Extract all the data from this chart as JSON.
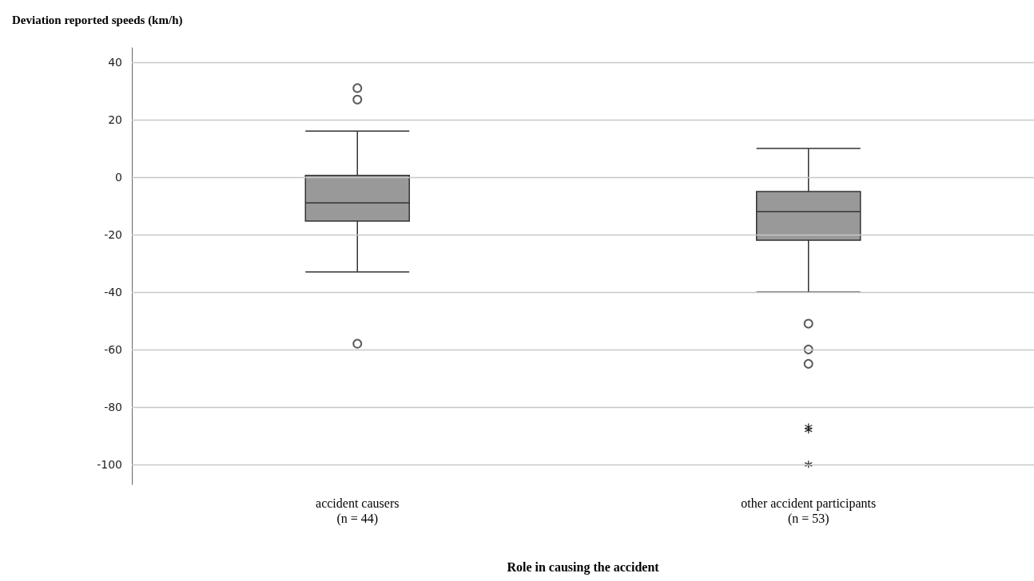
{
  "chart_data": {
    "type": "box",
    "ylabel": "Deviation reported speeds (km/h)",
    "xlabel": "Role in causing the accident",
    "categories": [
      "accident causers\n(n = 44)",
      "other accident participants\n(n = 53)"
    ],
    "boxes": [
      {
        "low": -33,
        "q1": -15.3,
        "median": -9,
        "q3": 0.6,
        "high": 16,
        "outliers": [
          31,
          27,
          -58
        ]
      },
      {
        "low": -40,
        "q1": -22,
        "median": -12,
        "q3": -5,
        "high": 10,
        "outliers": [
          -51,
          -60,
          -65
        ]
      }
    ],
    "series": [
      {
        "type": "scatter",
        "marker": "cross",
        "color": "#000000",
        "x": [
          "other accident participants\n(n = 53)",
          "other accident participants\n(n = 53)",
          "other accident participants\n(n = 53)"
        ],
        "values": [
          -87,
          -88,
          -100
        ]
      }
    ],
    "color": "#999999",
    "ylim": [
      -107,
      45
    ],
    "yticks": [
      -100,
      -80,
      -60,
      -40,
      -20,
      0,
      20,
      40
    ],
    "grid": "y",
    "legend": false
  }
}
